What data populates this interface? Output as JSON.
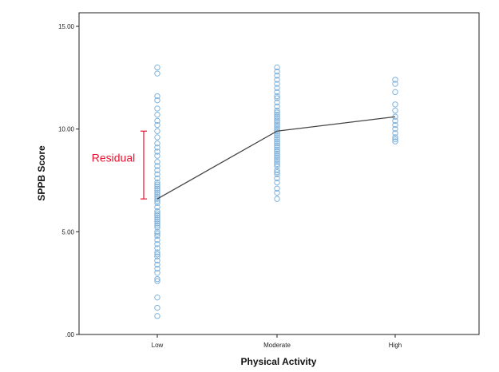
{
  "chart_data": {
    "type": "scatter",
    "xlabel": "Physical Activity",
    "ylabel": "SPPB Score",
    "categories": [
      "Low",
      "Moderate",
      "High"
    ],
    "ylim": [
      0,
      15
    ],
    "y_ticks": [
      ".00",
      "5.00",
      "10.00",
      "15.00"
    ],
    "y_tick_values": [
      0,
      5,
      10,
      15
    ],
    "grid": false,
    "legend": "none",
    "point_color": "#7eb2de",
    "line_color": "#444444",
    "annotation_color": "#e8112d",
    "series": [
      {
        "category": "Low",
        "values": [
          13.0,
          12.7,
          11.6,
          11.4,
          11.0,
          10.7,
          10.4,
          10.2,
          9.9,
          9.6,
          9.3,
          9.1,
          8.9,
          8.7,
          8.4,
          8.2,
          8.0,
          7.8,
          7.6,
          7.4,
          7.3,
          7.2,
          7.1,
          7.0,
          6.9,
          6.8,
          6.7,
          6.6,
          6.5,
          6.4,
          6.2,
          6.0,
          5.9,
          5.8,
          5.7,
          5.6,
          5.5,
          5.4,
          5.3,
          5.2,
          5.0,
          4.9,
          4.8,
          4.6,
          4.4,
          4.2,
          4.0,
          3.9,
          3.8,
          3.6,
          3.4,
          3.2,
          3.0,
          2.7,
          2.6,
          1.8,
          1.3,
          0.9
        ]
      },
      {
        "category": "Moderate",
        "values": [
          13.0,
          12.8,
          12.6,
          12.4,
          12.2,
          12.0,
          11.8,
          11.6,
          11.5,
          11.3,
          11.1,
          10.9,
          10.8,
          10.7,
          10.6,
          10.5,
          10.4,
          10.3,
          10.2,
          10.1,
          10.0,
          9.9,
          9.8,
          9.7,
          9.6,
          9.5,
          9.4,
          9.3,
          9.2,
          9.1,
          9.0,
          8.9,
          8.8,
          8.7,
          8.6,
          8.5,
          8.4,
          8.3,
          8.2,
          8.0,
          7.9,
          7.8,
          7.6,
          7.4,
          7.1,
          6.9,
          6.6
        ]
      },
      {
        "category": "High",
        "values": [
          12.4,
          12.2,
          11.8,
          11.2,
          10.9,
          10.6,
          10.4,
          10.2,
          10.0,
          9.8,
          9.6,
          9.5,
          9.4
        ]
      }
    ],
    "mean_line": {
      "categories": [
        "Low",
        "Moderate",
        "High"
      ],
      "values": [
        6.6,
        9.9,
        10.6
      ]
    },
    "annotation": {
      "text": "Residual",
      "category": "Low",
      "from": 6.6,
      "to": 9.9
    }
  }
}
